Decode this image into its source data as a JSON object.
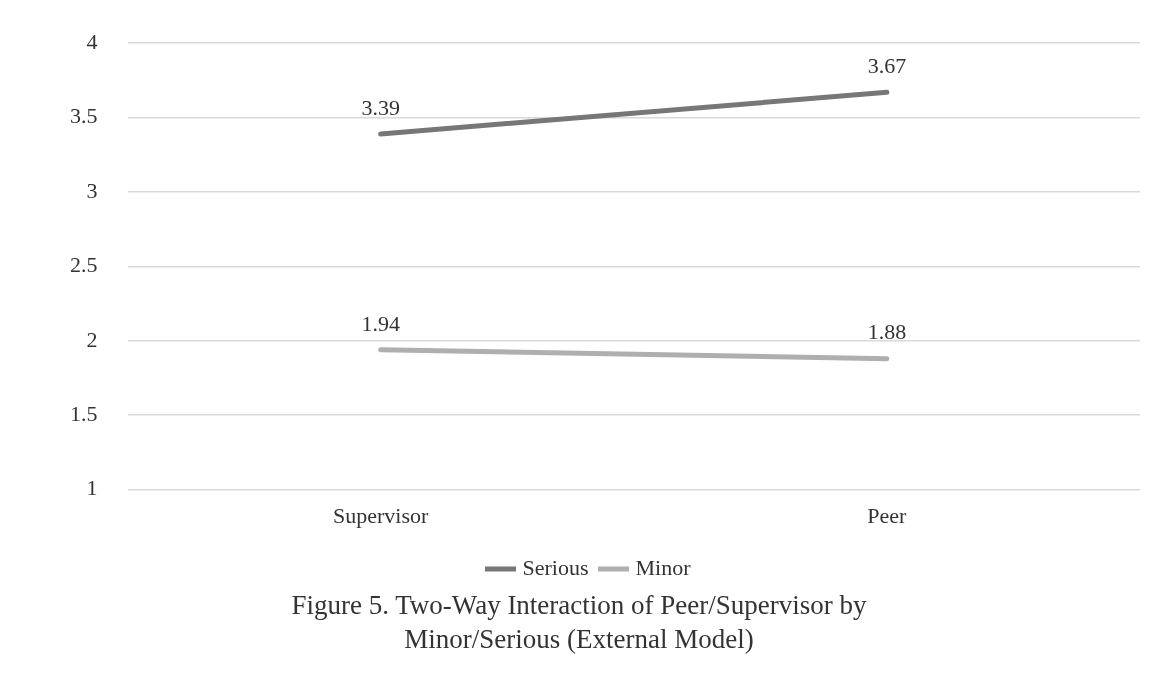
{
  "chart_data": {
    "type": "line",
    "title": "Figure 5. Two-Way Interaction of Peer/Supervisor by Minor/Serious (External Model)",
    "categories": [
      "Supervisor",
      "Peer"
    ],
    "series": [
      {
        "name": "Serious",
        "color": "#777777",
        "values": [
          3.39,
          3.67
        ]
      },
      {
        "name": "Minor",
        "color": "#afafaf",
        "values": [
          1.94,
          1.88
        ]
      }
    ],
    "ylim": [
      1,
      4
    ],
    "yticks": [
      1,
      1.5,
      2,
      2.5,
      3,
      3.5,
      4
    ],
    "grid": "y",
    "legend": "bottom",
    "marker": "none",
    "line_style": "solid",
    "data_labels": true
  }
}
